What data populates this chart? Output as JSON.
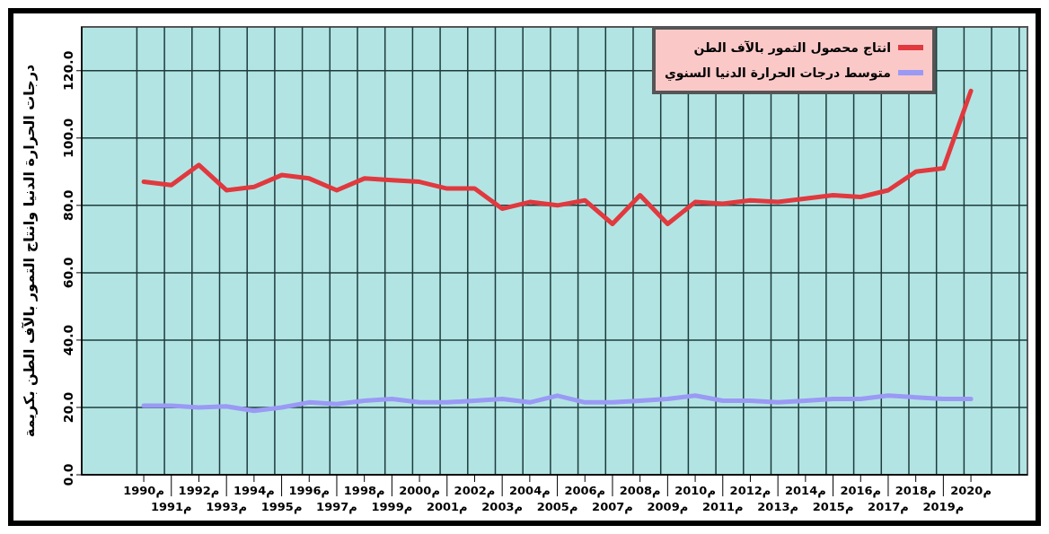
{
  "chart_data": {
    "type": "line",
    "ylabel": "درجات الحرارة الدنيا وانتاج التمور بالآف الطن بكريمة",
    "categories": [
      "1990م",
      "1991م",
      "1992م",
      "1993م",
      "1994م",
      "1995م",
      "1996م",
      "1997م",
      "1998م",
      "1999م",
      "2000م",
      "2001م",
      "2002م",
      "2003م",
      "2004م",
      "2005م",
      "2006م",
      "2007م",
      "2008م",
      "2009م",
      "2010م",
      "2011م",
      "2012م",
      "2013م",
      "2014م",
      "2015م",
      "2016م",
      "2017م",
      "2018م",
      "2019م",
      "2020م"
    ],
    "series": [
      {
        "name": "انتاج محصول التمور بالآف الطن",
        "color": "#e0393e",
        "values": [
          87,
          86,
          92,
          84.5,
          85.5,
          89,
          88,
          84.5,
          88,
          87.5,
          87,
          85,
          85,
          79,
          81,
          80,
          81.5,
          74.5,
          83,
          74.5,
          81,
          80.5,
          81.5,
          81,
          82,
          83,
          82.5,
          84.5,
          90,
          91,
          114
        ]
      },
      {
        "name": "متوسط درجات الحرارة الدنيا السنوي",
        "color": "#9a9af5",
        "values": [
          20.5,
          20.5,
          20,
          20.3,
          19,
          20,
          21.5,
          21,
          22,
          22.5,
          21.5,
          21.5,
          22,
          22.5,
          21.5,
          23.5,
          21.5,
          21.5,
          22,
          22.5,
          23.5,
          22,
          22,
          21.5,
          22,
          22.5,
          22.5,
          23.5,
          23,
          22.5,
          22.5
        ]
      }
    ],
    "ylim": [
      0,
      133
    ],
    "yticks": [
      {
        "value": 0,
        "label": "0.0"
      },
      {
        "value": 20,
        "label": "20.0"
      },
      {
        "value": 40,
        "label": "40.0"
      },
      {
        "value": 60,
        "label": "60.0"
      },
      {
        "value": 80,
        "label": "80.0"
      },
      {
        "value": 100,
        "label": "100.0"
      },
      {
        "value": 120,
        "label": "120.0"
      }
    ],
    "grid": true,
    "legend": "top right",
    "line_style": "solid",
    "marker": "none"
  }
}
